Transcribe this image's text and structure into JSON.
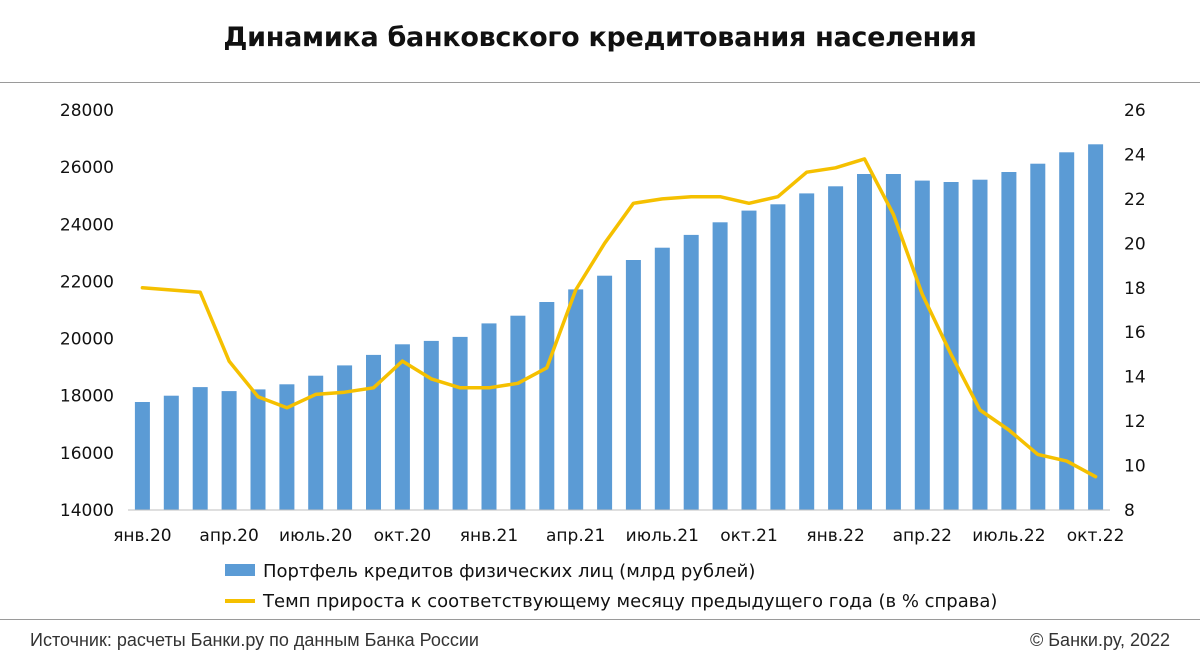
{
  "title": "Динамика банковского кредитования населения",
  "footer": {
    "source": "Источник: расчеты Банки.ру по данным Банка России",
    "copyright": "© Банки.ру, 2022"
  },
  "colors": {
    "bar": "#5b9bd5",
    "line": "#f5c000",
    "axis": "#bfbfbf"
  },
  "chart_data": {
    "type": "bar",
    "x": [
      "янв.20",
      "фев.20",
      "мар.20",
      "апр.20",
      "май.20",
      "июн.20",
      "июль.20",
      "авг.20",
      "сен.20",
      "окт.20",
      "ноя.20",
      "дек.20",
      "янв.21",
      "фев.21",
      "мар.21",
      "апр.21",
      "май.21",
      "июн.21",
      "июль.21",
      "авг.21",
      "сен.21",
      "окт.21",
      "ноя.21",
      "дек.21",
      "янв.22",
      "фев.22",
      "мар.22",
      "апр.22",
      "май.22",
      "июн.22",
      "июль.22",
      "авг.22",
      "сен.22",
      "окт.22"
    ],
    "x_tick_labels": [
      "янв.20",
      "апр.20",
      "июль.20",
      "окт.20",
      "янв.21",
      "апр.21",
      "июль.21",
      "окт.21",
      "янв.22",
      "апр.22",
      "июль.22",
      "окт.22"
    ],
    "x_tick_every": 3,
    "series": [
      {
        "name": "Портфель кредитов физических лиц (млрд рублей)",
        "type": "bar",
        "axis": "left",
        "values": [
          17780,
          18000,
          18300,
          18160,
          18220,
          18400,
          18700,
          19060,
          19430,
          19800,
          19920,
          20060,
          20530,
          20800,
          21280,
          21720,
          22200,
          22750,
          23180,
          23630,
          24070,
          24480,
          24700,
          25080,
          25330,
          25760,
          25760,
          25530,
          25480,
          25560,
          25830,
          26120,
          26520,
          26800
        ]
      },
      {
        "name": "Темп прироста к соответствующему месяцу предыдущего года (в % справа)",
        "type": "line",
        "axis": "right",
        "values": [
          18.0,
          17.9,
          17.8,
          14.7,
          13.1,
          12.6,
          13.2,
          13.3,
          13.5,
          14.7,
          13.9,
          13.5,
          13.5,
          13.7,
          14.4,
          17.9,
          20.0,
          21.8,
          22.0,
          22.1,
          22.1,
          21.8,
          22.1,
          23.2,
          23.4,
          23.8,
          21.3,
          17.7,
          15.0,
          12.5,
          11.6,
          10.5,
          10.2,
          9.5
        ]
      }
    ],
    "y_left": {
      "ylim": [
        14000,
        28000
      ],
      "ticks": [
        14000,
        16000,
        18000,
        20000,
        22000,
        24000,
        26000,
        28000
      ]
    },
    "y_right": {
      "ylim": [
        8,
        26
      ],
      "ticks": [
        8,
        10,
        12,
        14,
        16,
        18,
        20,
        22,
        24,
        26
      ]
    },
    "grid": false,
    "legend": "bottom"
  }
}
